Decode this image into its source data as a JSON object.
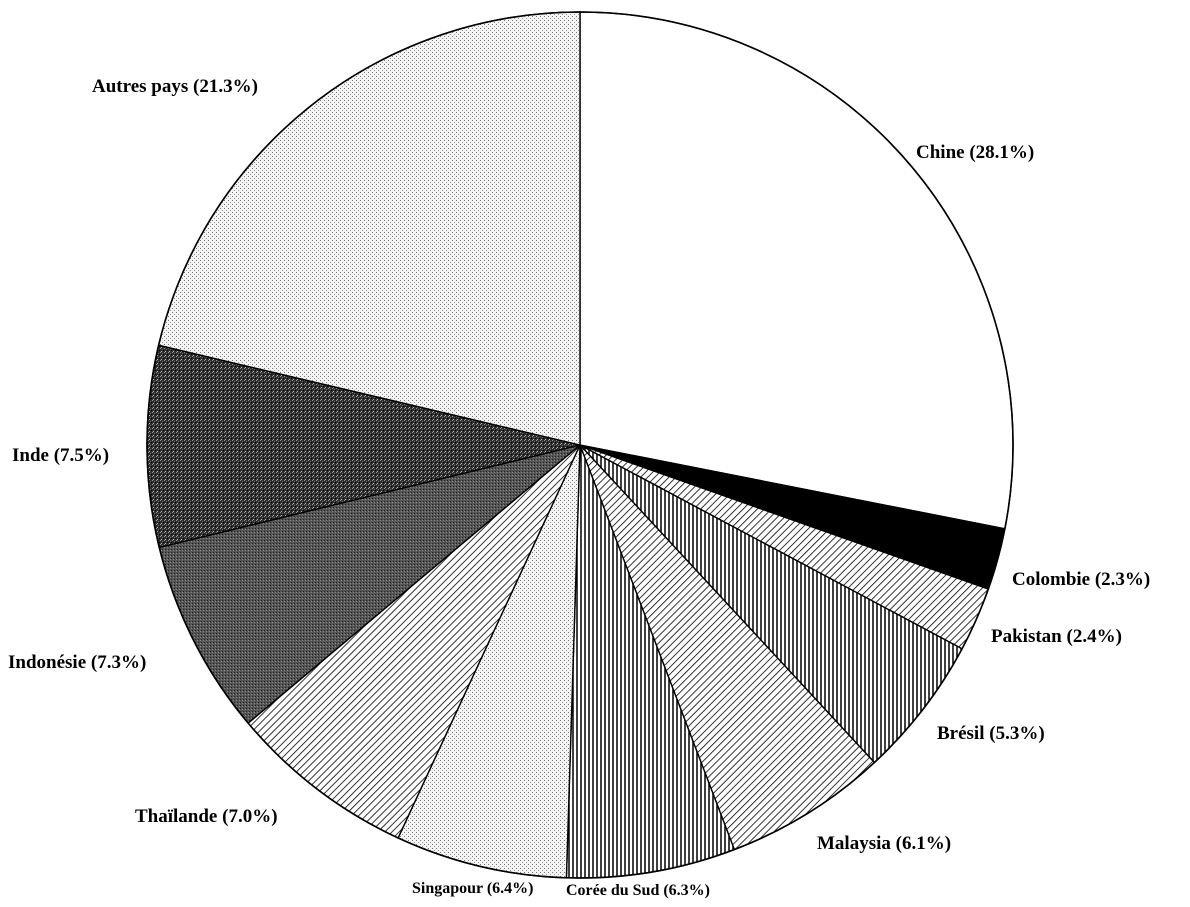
{
  "chart_data": {
    "type": "pie",
    "title": "",
    "slices": [
      {
        "label": "Chine",
        "value": 28.1,
        "display": "Chine (28.1%)",
        "fill": "white"
      },
      {
        "label": "Colombie",
        "value": 2.3,
        "display": "Colombie (2.3%)",
        "fill": "black"
      },
      {
        "label": "Pakistan",
        "value": 2.4,
        "display": "Pakistan (2.4%)",
        "fill": "diagonal-hatch"
      },
      {
        "label": "Brésil",
        "value": 5.3,
        "display": "Brésil (5.3%)",
        "fill": "vertical-hatch"
      },
      {
        "label": "Malaysia",
        "value": 6.1,
        "display": "Malaysia (6.1%)",
        "fill": "diagonal-hatch"
      },
      {
        "label": "Corée du Sud",
        "value": 6.3,
        "display": "Corée du Sud (6.3%)",
        "fill": "vertical-hatch"
      },
      {
        "label": "Singapour",
        "value": 6.4,
        "display": "Singapour (6.4%)",
        "fill": "light-dots"
      },
      {
        "label": "Thaïlande",
        "value": 7.0,
        "display": "Thaïlande (7.0%)",
        "fill": "diagonal-hatch"
      },
      {
        "label": "Indonésie",
        "value": 7.3,
        "display": "Indonésie (7.3%)",
        "fill": "dark-gray"
      },
      {
        "label": "Inde",
        "value": 7.5,
        "display": "Inde (7.5%)",
        "fill": "dark-speckle"
      },
      {
        "label": "Autres pays",
        "value": 21.3,
        "display": "Autres pays (21.3%)",
        "fill": "light-dots"
      }
    ],
    "start_angle": "12 o'clock",
    "direction": "clockwise",
    "legend": "none"
  }
}
